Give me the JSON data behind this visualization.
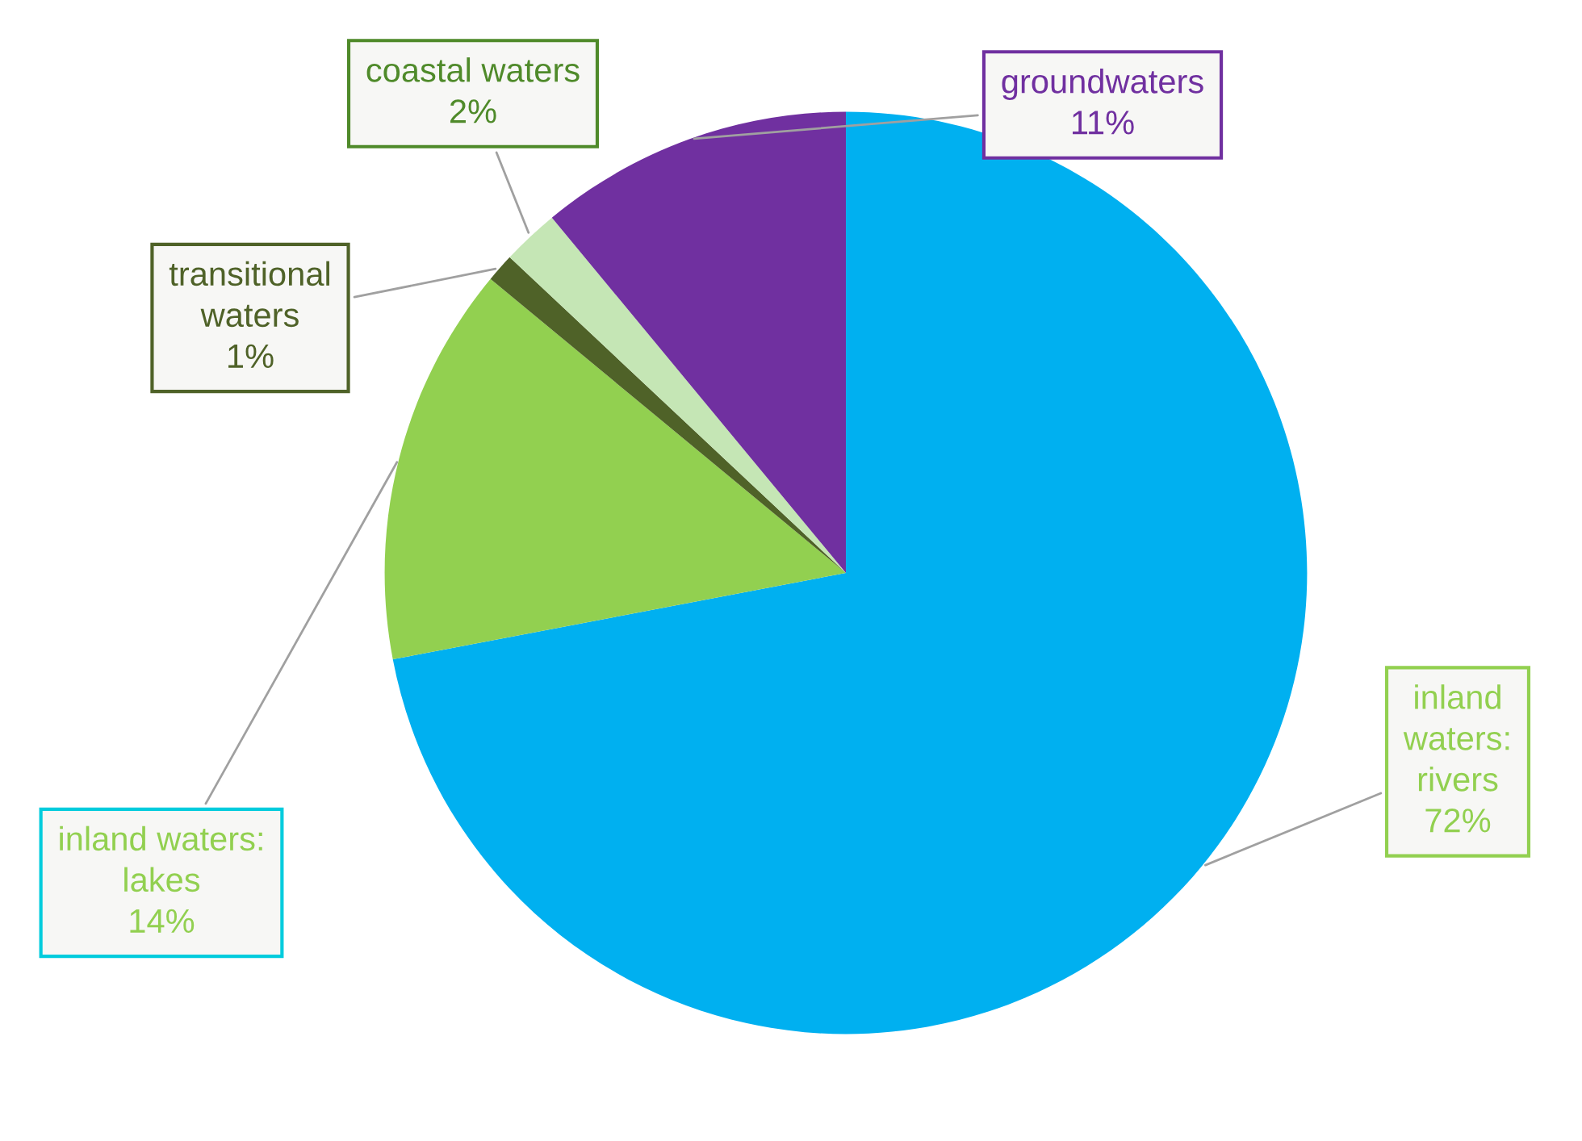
{
  "chart_data": {
    "type": "pie",
    "categories": [
      "inland waters: rivers",
      "inland waters: lakes",
      "transitional waters",
      "coastal waters",
      "groundwaters"
    ],
    "values": [
      72,
      14,
      1,
      2,
      11
    ],
    "colors": [
      "#00b0f0",
      "#92d050",
      "#4f6228",
      "#c5e6b5",
      "#7030a0"
    ],
    "value_labels": [
      "72%",
      "14%",
      "1%",
      "2%",
      "11%"
    ]
  }
}
